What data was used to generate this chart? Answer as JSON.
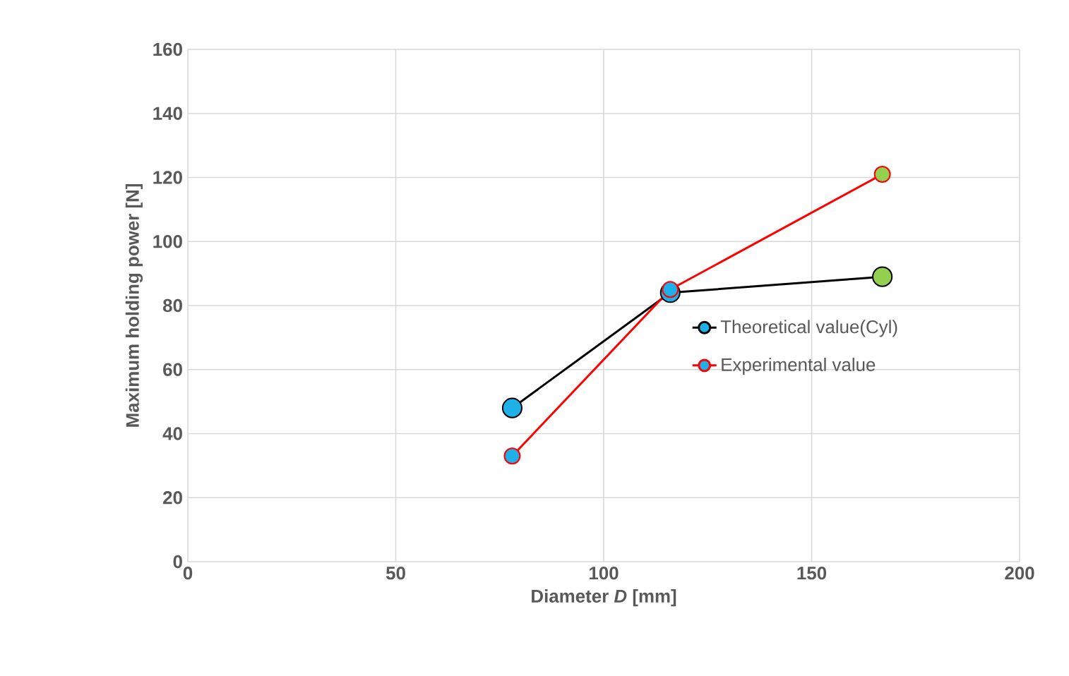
{
  "chart_data": {
    "type": "line",
    "xlabel": "Diameter *D* [mm]",
    "ylabel": "Maximum holding power [N]",
    "xlim": [
      0,
      200
    ],
    "xticks": [
      0,
      50,
      100,
      150,
      200
    ],
    "ylim": [
      0,
      160
    ],
    "yticks": [
      0,
      20,
      40,
      60,
      80,
      100,
      120,
      140,
      160
    ],
    "grid": true,
    "legend": "right",
    "marker": "circle",
    "line_style": "solid",
    "series": [
      {
        "name": "Theoretical value(Cyl)",
        "color": "#000000",
        "x": [
          78,
          116,
          167
        ],
        "values": [
          48,
          84,
          89
        ],
        "colors": [
          "#1fb0e8",
          "#1fb0e8",
          "#92d050"
        ]
      },
      {
        "name": "Experimental value",
        "color": "#ff0000",
        "x": [
          78,
          116,
          167
        ],
        "values": [
          33,
          85,
          121
        ],
        "colors": [
          "#1fb0e8",
          "#1fb0e8",
          "#92d050"
        ]
      }
    ]
  }
}
